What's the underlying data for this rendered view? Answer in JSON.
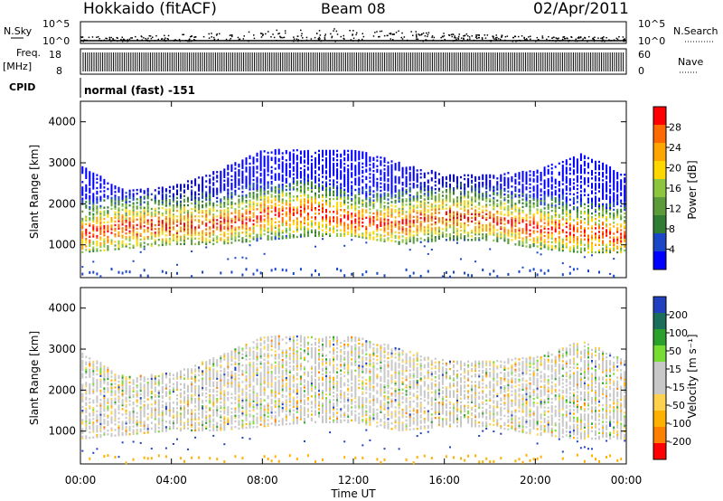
{
  "header": {
    "radar": "Hokkaido (fitACF)",
    "beam": "Beam 08",
    "date": "02/Apr/2011"
  },
  "strips": {
    "nsky_label": "N.Sky",
    "nsky_ticks": [
      "10^5",
      "10^0"
    ],
    "nsearch_label": "N.Search",
    "nsearch_ticks": [
      "10^5",
      "10^0"
    ],
    "freq_label": "Freq.",
    "freq_unit": "[MHz]",
    "freq_ticks": [
      "18",
      "8"
    ],
    "nave_label": "Nave",
    "nave_ticks": [
      "60",
      "0"
    ],
    "cpid_label": "CPID",
    "cpid_value": "normal (fast) -151"
  },
  "colors": {
    "power": [
      "#0000ff",
      "#1a46c8",
      "#2e7d32",
      "#5b9b3a",
      "#8cc63f",
      "#ffd700",
      "#ffa500",
      "#ff6a00",
      "#ff0000"
    ],
    "velocity": [
      "#ff0000",
      "#ff7f00",
      "#ffb000",
      "#ffd24d",
      "#c8c8c8",
      "#c8c8c8",
      "#77dd33",
      "#2ca02c",
      "#1a6e5a",
      "#2040c0"
    ]
  },
  "chart_data": [
    {
      "type": "heatmap",
      "name": "power",
      "ylabel": "Slant Range [km]",
      "ylim": [
        200,
        4500
      ],
      "yticks": [
        "4000",
        "3000",
        "2000",
        "1000"
      ],
      "colorbar_label": "Power [dB]",
      "colorbar_ticks": [
        "28",
        "24",
        "20",
        "16",
        "12",
        "8",
        "4"
      ],
      "colorbar_range": [
        0,
        32
      ],
      "xlim": [
        0,
        24
      ],
      "echo_band": [
        {
          "t": 0,
          "lo": 800,
          "hi": 2900,
          "peak": 1250
        },
        {
          "t": 2,
          "lo": 900,
          "hi": 2300,
          "peak": 1400
        },
        {
          "t": 4,
          "lo": 1000,
          "hi": 2400,
          "peak": 1450
        },
        {
          "t": 6,
          "lo": 1000,
          "hi": 2800,
          "peak": 1450
        },
        {
          "t": 8,
          "lo": 1100,
          "hi": 3300,
          "peak": 1700
        },
        {
          "t": 10,
          "lo": 1200,
          "hi": 3300,
          "peak": 1800
        },
        {
          "t": 12,
          "lo": 1200,
          "hi": 3300,
          "peak": 1550
        },
        {
          "t": 14,
          "lo": 1000,
          "hi": 3000,
          "peak": 1500
        },
        {
          "t": 16,
          "lo": 1100,
          "hi": 2700,
          "peak": 1700
        },
        {
          "t": 18,
          "lo": 1100,
          "hi": 2700,
          "peak": 1600
        },
        {
          "t": 20,
          "lo": 900,
          "hi": 2800,
          "peak": 1400
        },
        {
          "t": 22,
          "lo": 800,
          "hi": 3200,
          "peak": 1300
        },
        {
          "t": 24,
          "lo": 800,
          "hi": 2700,
          "peak": 1200
        }
      ]
    },
    {
      "type": "heatmap",
      "name": "velocity",
      "ylabel": "Slant Range [km]",
      "ylim": [
        200,
        4500
      ],
      "yticks": [
        "4000",
        "3000",
        "2000",
        "1000"
      ],
      "colorbar_label": "Velocity [m s⁻¹]",
      "colorbar_ticks": [
        "200",
        "100",
        "50",
        "15",
        "-15",
        "-50",
        "-100",
        "-200"
      ],
      "xlim": [
        0,
        24
      ],
      "xticks": [
        "00:00",
        "04:00",
        "08:00",
        "12:00",
        "16:00",
        "20:00",
        "00:00"
      ],
      "xlabel": "Time UT"
    }
  ]
}
